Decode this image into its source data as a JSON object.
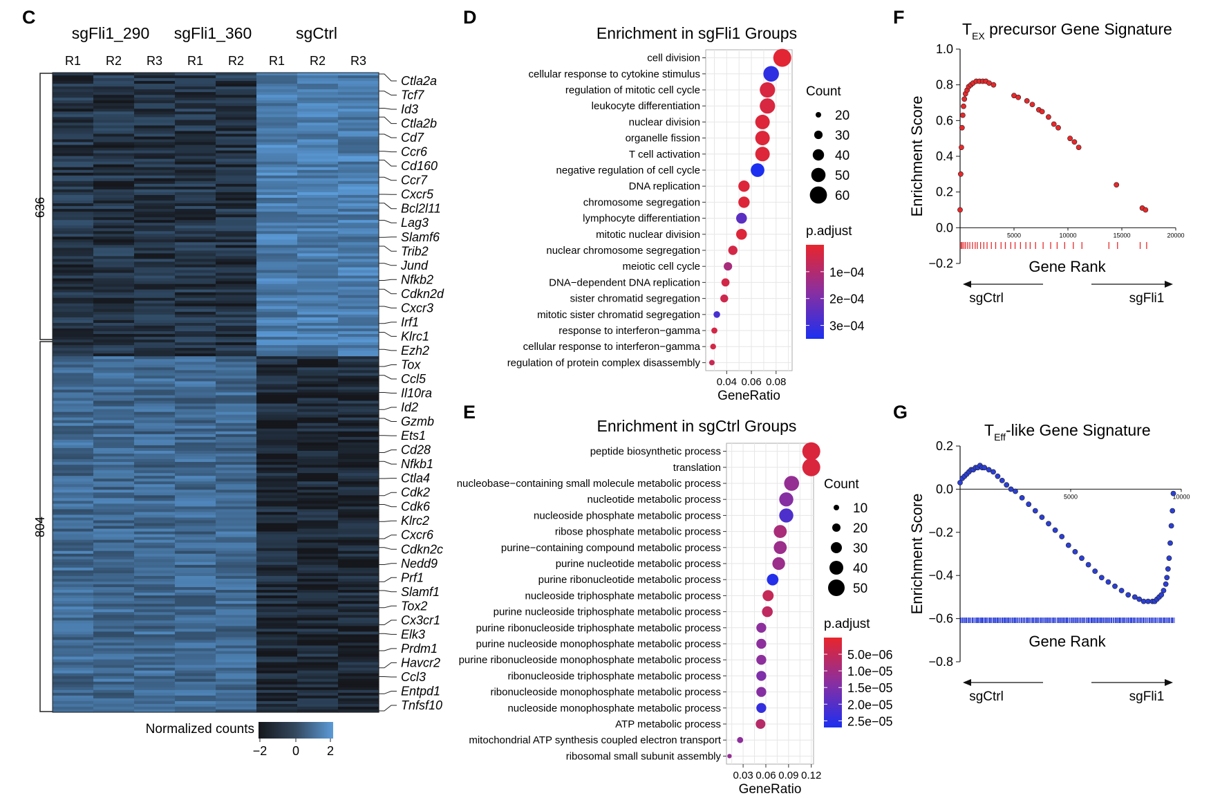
{
  "panel_letters": [
    "C",
    "D",
    "E",
    "F",
    "G"
  ],
  "heatmap": {
    "groups": [
      "sgFli1_290",
      "sgFli1_360",
      "sgCtrl"
    ],
    "replicates": [
      "R1",
      "R2",
      "R3",
      "R1",
      "R2",
      "R1",
      "R2",
      "R3"
    ],
    "cluster_labels": [
      "636",
      "804"
    ],
    "cluster_sizes": [
      636,
      804
    ],
    "genes": [
      "Ctla2a",
      "Tcf7",
      "Id3",
      "Ctla2b",
      "Cd7",
      "Ccr6",
      "Cd160",
      "Ccr7",
      "Cxcr5",
      "Bcl2l11",
      "Lag3",
      "Slamf6",
      "Trib2",
      "Jund",
      "Nfkb2",
      "Cdkn2d",
      "Cxcr3",
      "Irf1",
      "Klrc1",
      "Ezh2",
      "Tox",
      "Ccl5",
      "Il10ra",
      "Id2",
      "Gzmb",
      "Ets1",
      "Cd28",
      "Nfkb1",
      "Ctla4",
      "Cdk2",
      "Cdk6",
      "Klrc2",
      "Cxcr6",
      "Cdkn2c",
      "Nedd9",
      "Prf1",
      "Slamf1",
      "Tox2",
      "Cx3cr1",
      "Elk3",
      "Prdm1",
      "Havcr2",
      "Ccl3",
      "Entpd1",
      "Tnfsf10"
    ],
    "legend_title": "Normalized counts",
    "legend_ticks": [
      "−2",
      "0",
      "2"
    ],
    "colors": {
      "low": "#15171c",
      "high": "#5b9bd8"
    }
  },
  "chart_data": [
    {
      "panel": "D",
      "type": "scatter",
      "title": "Enrichment in sgFli1 Groups",
      "xlabel": "GeneRatio",
      "xticks": [
        "0.04",
        "0.06",
        "0.08"
      ],
      "xlim": [
        0.023,
        0.093
      ],
      "size_legend_title": "Count",
      "size_legend": [
        20,
        30,
        40,
        50,
        60
      ],
      "size_range": [
        20,
        63
      ],
      "color_legend_title": "p.adjust",
      "color_ticks": [
        "1e−04",
        "2e−04",
        "3e−04"
      ],
      "color_range": [
        0.0,
        0.00035
      ],
      "terms": [
        "cell division",
        "cellular response to cytokine stimulus",
        "regulation of mitotic cell cycle",
        "leukocyte differentiation",
        "nuclear division",
        "organelle fission",
        "T cell activation",
        "negative regulation of cell cycle",
        "DNA replication",
        "chromosome segregation",
        "lymphocyte differentiation",
        "mitotic nuclear division",
        "nuclear chromosome segregation",
        "meiotic cell cycle",
        "DNA−dependent DNA replication",
        "sister chromatid segregation",
        "mitotic sister chromatid segregation",
        "response to interferon−gamma",
        "cellular response to interferon−gamma",
        "regulation of protein complex disassembly"
      ],
      "gene_ratio": [
        0.085,
        0.076,
        0.073,
        0.073,
        0.069,
        0.069,
        0.069,
        0.065,
        0.054,
        0.054,
        0.052,
        0.052,
        0.045,
        0.041,
        0.039,
        0.038,
        0.032,
        0.03,
        0.029,
        0.028
      ],
      "count": [
        63,
        55,
        54,
        54,
        51,
        51,
        51,
        48,
        40,
        40,
        38,
        38,
        33,
        30,
        29,
        28,
        24,
        22,
        21,
        20
      ],
      "p_adjust": [
        1e-05,
        0.00032,
        3e-05,
        3e-05,
        2e-05,
        2e-05,
        2e-05,
        0.00035,
        2e-05,
        2e-05,
        0.00025,
        2e-05,
        4e-05,
        0.00012,
        4e-05,
        5e-05,
        0.00028,
        4e-05,
        4e-05,
        6e-05
      ]
    },
    {
      "panel": "E",
      "type": "scatter",
      "title": "Enrichment in sgCtrl Groups",
      "xlabel": "GeneRatio",
      "xticks": [
        "0.03",
        "0.06",
        "0.09",
        "0.12"
      ],
      "xlim": [
        0.008,
        0.123
      ],
      "size_legend_title": "Count",
      "size_legend": [
        10,
        20,
        30,
        40,
        50
      ],
      "size_range": [
        10,
        55
      ],
      "color_legend_title": "p.adjust",
      "color_ticks": [
        "5.0e−06",
        "1.0e−05",
        "1.5e−05",
        "2.0e−05",
        "2.5e−05"
      ],
      "color_range": [
        0.0,
        2.7e-05
      ],
      "terms": [
        "peptide biosynthetic process",
        "translation",
        "nucleobase−containing small molecule metabolic process",
        "nucleotide metabolic process",
        "nucleoside phosphate metabolic process",
        "ribose phosphate metabolic process",
        "purine−containing compound metabolic process",
        "purine nucleotide metabolic process",
        "purine ribonucleotide metabolic process",
        "nucleoside triphosphate metabolic process",
        "purine nucleoside triphosphate metabolic process",
        "purine ribonucleoside triphosphate metabolic process",
        "purine nucleoside monophosphate metabolic process",
        "purine ribonucleoside monophosphate metabolic process",
        "ribonucleoside triphosphate metabolic process",
        "ribonucleoside monophosphate metabolic process",
        "nucleoside monophosphate metabolic process",
        "ATP metabolic process",
        "mitochondrial ATP synthesis coupled electron transport",
        "ribosomal small subunit assembly"
      ],
      "gene_ratio": [
        0.12,
        0.12,
        0.094,
        0.087,
        0.087,
        0.079,
        0.079,
        0.077,
        0.069,
        0.063,
        0.062,
        0.054,
        0.054,
        0.054,
        0.054,
        0.054,
        0.054,
        0.053,
        0.026,
        0.012
      ],
      "count": [
        55,
        55,
        44,
        41,
        41,
        37,
        37,
        36,
        32,
        30,
        29,
        26,
        26,
        26,
        26,
        26,
        26,
        25,
        12,
        6
      ],
      "p_adjust": [
        2e-06,
        2e-06,
        1.2e-05,
        1.4e-05,
        2.1e-05,
        9e-06,
        1.1e-05,
        1.1e-05,
        2.6e-05,
        5e-06,
        6e-06,
        1.3e-05,
        1.3e-05,
        1.3e-05,
        1.5e-05,
        1.4e-05,
        2.4e-05,
        7e-06,
        1.3e-05,
        1.2e-05
      ]
    },
    {
      "panel": "F",
      "type": "scatter",
      "title": "T precursor Gene Signature",
      "title_main": "T",
      "title_sub": "EX",
      "title_rest": " precursor Gene Signature",
      "xlabel": "Gene Rank",
      "ylabel": "Enrichment Score",
      "ylim": [
        -0.2,
        1.0
      ],
      "yticks": [
        "1.0",
        "0.8",
        "0.6",
        "0.4",
        "0.2",
        "0.0",
        "−0.2"
      ],
      "xlim": [
        0,
        20000
      ],
      "xticks": [
        "5000",
        "10000",
        "15000",
        "20000"
      ],
      "left_label": "sgCtrl",
      "right_label": "sgFli1",
      "point_color": "#e8282b",
      "x": [
        0,
        60,
        120,
        180,
        250,
        320,
        400,
        500,
        650,
        800,
        1000,
        1200,
        1500,
        1800,
        2100,
        2400,
        2700,
        3100,
        5000,
        5400,
        6200,
        6700,
        7300,
        7600,
        8200,
        8700,
        9100,
        10200,
        10600,
        11000,
        14500,
        16900,
        17200
      ],
      "y": [
        0.1,
        0.3,
        0.45,
        0.56,
        0.63,
        0.68,
        0.72,
        0.75,
        0.77,
        0.79,
        0.8,
        0.81,
        0.82,
        0.82,
        0.82,
        0.82,
        0.81,
        0.8,
        0.74,
        0.73,
        0.71,
        0.69,
        0.66,
        0.65,
        0.62,
        0.58,
        0.56,
        0.5,
        0.48,
        0.45,
        0.24,
        0.11,
        0.1
      ],
      "rug": [
        100,
        200,
        350,
        500,
        700,
        900,
        1150,
        1400,
        1600,
        1900,
        2200,
        2500,
        2900,
        3300,
        3800,
        4200,
        4700,
        5100,
        5600,
        6100,
        6500,
        7000,
        7700,
        8400,
        9000,
        9700,
        10500,
        11300,
        13800,
        14600,
        16700,
        17300
      ]
    },
    {
      "panel": "G",
      "type": "scatter",
      "title": "T-like Gene Signature",
      "title_main": "T",
      "title_sub": "Eff",
      "title_rest": "-like Gene Signature",
      "xlabel": "Gene Rank",
      "ylabel": "Enrichment Score",
      "ylim": [
        -0.8,
        0.2
      ],
      "yticks": [
        "0.2",
        "0.0",
        "−0.2",
        "−0.4",
        "−0.6",
        "−0.8"
      ],
      "xlim": [
        0,
        10000
      ],
      "xticks": [
        "5000",
        "10000"
      ],
      "left_label": "sgCtrl",
      "right_label": "sgFli1",
      "point_color": "#2b3fd6",
      "x": [
        0,
        100,
        200,
        300,
        400,
        500,
        600,
        700,
        800,
        900,
        1000,
        1100,
        1300,
        1500,
        1700,
        1900,
        2100,
        2300,
        2500,
        2800,
        3100,
        3400,
        3700,
        4000,
        4300,
        4600,
        4900,
        5200,
        5500,
        5800,
        6100,
        6400,
        6700,
        7000,
        7300,
        7600,
        7900,
        8100,
        8300,
        8500,
        8700,
        8800,
        8900,
        9000,
        9100,
        9200,
        9300,
        9350,
        9400,
        9450,
        9500,
        9550,
        9600,
        9640
      ],
      "y": [
        0.03,
        0.05,
        0.06,
        0.07,
        0.08,
        0.09,
        0.09,
        0.1,
        0.1,
        0.11,
        0.1,
        0.1,
        0.09,
        0.08,
        0.06,
        0.04,
        0.02,
        0.0,
        -0.01,
        -0.04,
        -0.07,
        -0.1,
        -0.13,
        -0.16,
        -0.19,
        -0.22,
        -0.26,
        -0.29,
        -0.32,
        -0.35,
        -0.38,
        -0.41,
        -0.43,
        -0.45,
        -0.47,
        -0.49,
        -0.5,
        -0.51,
        -0.52,
        -0.52,
        -0.52,
        -0.52,
        -0.51,
        -0.5,
        -0.49,
        -0.47,
        -0.44,
        -0.41,
        -0.37,
        -0.32,
        -0.25,
        -0.17,
        -0.1,
        -0.02
      ],
      "rug_count": 260
    }
  ]
}
